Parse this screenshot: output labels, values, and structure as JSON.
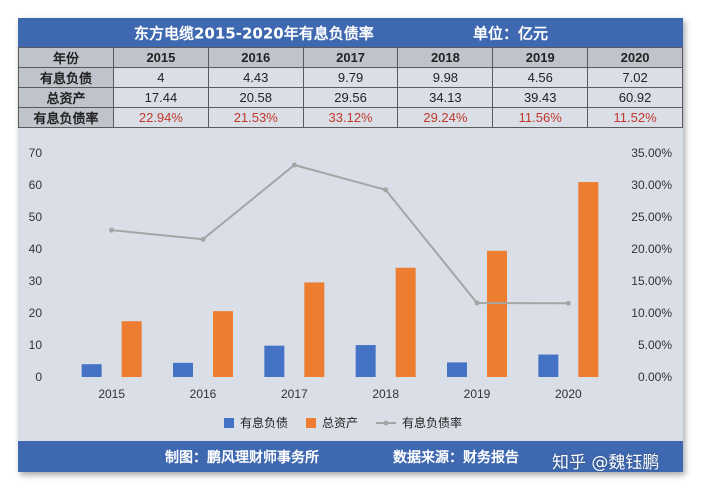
{
  "header": {
    "title": "东方电缆2015-2020年有息负债率",
    "unit": "单位：亿元"
  },
  "table": {
    "columns": [
      "年份",
      "2015",
      "2016",
      "2017",
      "2018",
      "2019",
      "2020"
    ],
    "rows": [
      {
        "label": "有息负债",
        "values": [
          "4",
          "4.43",
          "9.79",
          "9.98",
          "4.56",
          "7.02"
        ]
      },
      {
        "label": "总资产",
        "values": [
          "17.44",
          "20.58",
          "29.56",
          "34.13",
          "39.43",
          "60.92"
        ]
      },
      {
        "label": "有息负债率",
        "values": [
          "22.94%",
          "21.53%",
          "33.12%",
          "29.24%",
          "11.56%",
          "11.52%"
        ]
      }
    ]
  },
  "chart_data": {
    "type": "bar",
    "categories": [
      "2015",
      "2016",
      "2017",
      "2018",
      "2019",
      "2020"
    ],
    "series": [
      {
        "name": "有息负债",
        "type": "bar",
        "axis": "left",
        "color": "#4472c4",
        "values": [
          4,
          4.43,
          9.79,
          9.98,
          4.56,
          7.02
        ]
      },
      {
        "name": "总资产",
        "type": "bar",
        "axis": "left",
        "color": "#ed7d31",
        "values": [
          17.44,
          20.58,
          29.56,
          34.13,
          39.43,
          60.92
        ]
      },
      {
        "name": "有息负债率",
        "type": "line",
        "axis": "right",
        "color": "#a5a5a5",
        "values": [
          22.94,
          21.53,
          33.12,
          29.24,
          11.56,
          11.52
        ]
      }
    ],
    "ylim": [
      0,
      70
    ],
    "yticks": [
      "0",
      "10",
      "20",
      "30",
      "40",
      "50",
      "60",
      "70"
    ],
    "y2lim": [
      0,
      35
    ],
    "y2ticks": [
      "0.00%",
      "5.00%",
      "10.00%",
      "15.00%",
      "20.00%",
      "25.00%",
      "30.00%",
      "35.00%"
    ],
    "legend_position": "bottom",
    "grid": false
  },
  "footer": {
    "maker": "制图：鹏风理财师事务所",
    "source": "数据来源：财务报告"
  },
  "watermark": "知乎 @魏钰鹏",
  "colors": {
    "banner": "#3e68b0",
    "background": "#d9dee7",
    "rate_text": "#c0392b"
  }
}
